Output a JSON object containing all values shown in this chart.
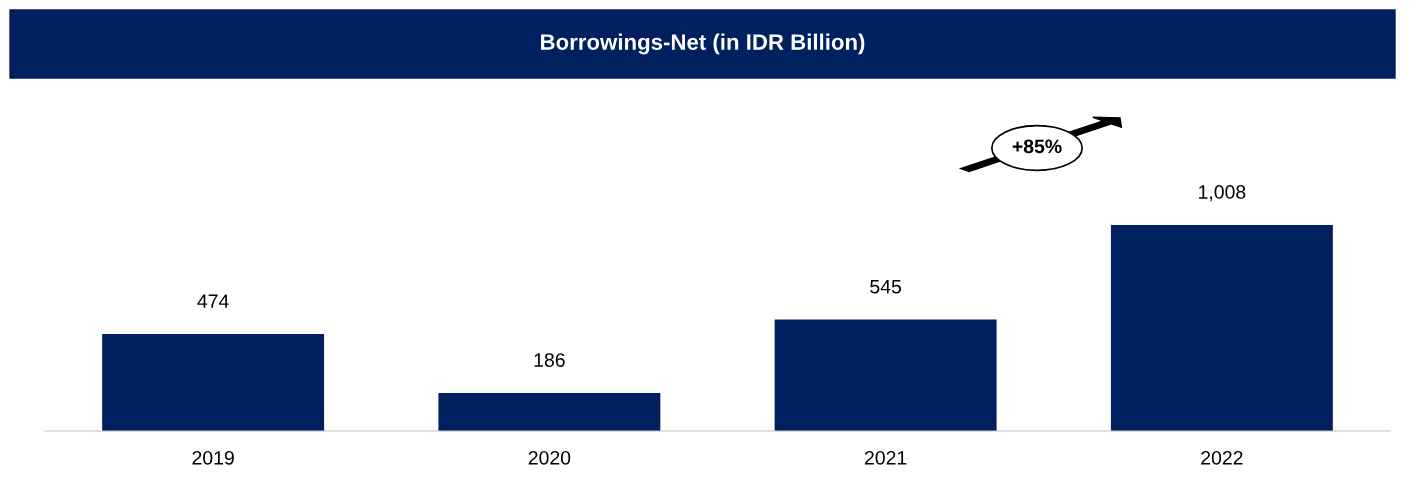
{
  "chart_data": {
    "type": "bar",
    "title": "Borrowings-Net (in IDR Billion)",
    "categories": [
      "2019",
      "2020",
      "2021",
      "2022"
    ],
    "values": [
      474,
      186,
      545,
      1008
    ],
    "color": "#002060",
    "value_labels": [
      "474",
      "186",
      "545",
      "1,008"
    ],
    "grid": false,
    "tick_labels": "x",
    "annotations": [
      "+85%"
    ]
  }
}
